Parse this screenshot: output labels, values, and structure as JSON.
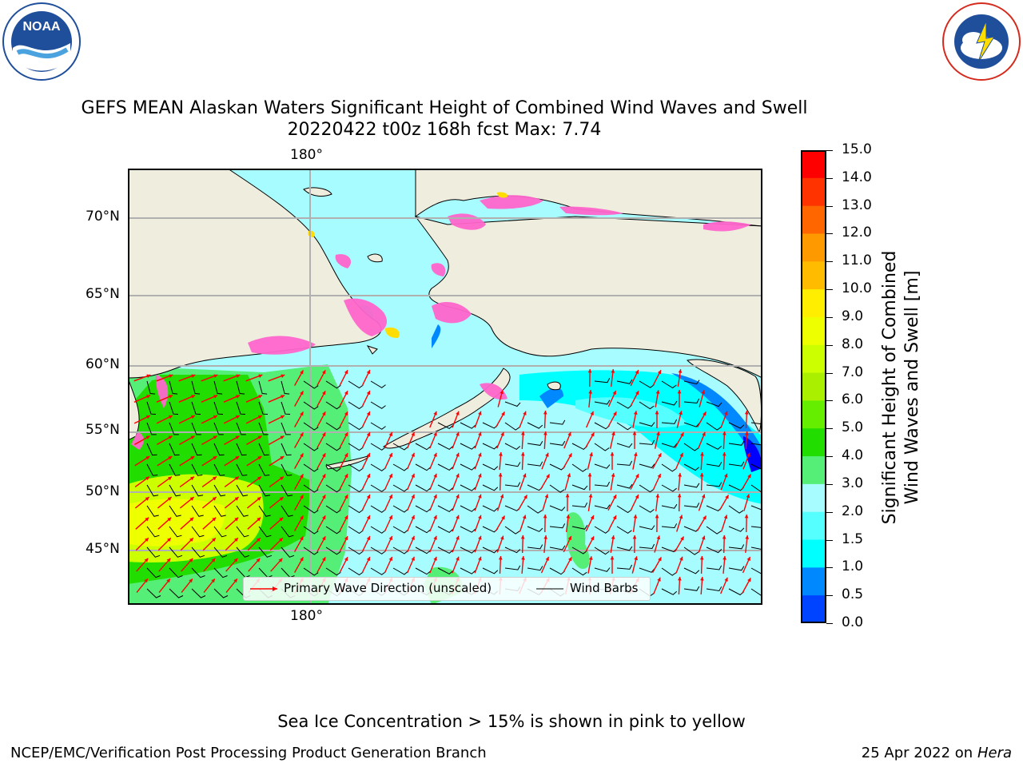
{
  "header": {
    "title_line1": "GEFS MEAN Alaskan Waters Significant Height of Combined Wind Waves and Swell",
    "title_line2": "20220422 t00z 168h fcst   Max: 7.74"
  },
  "logos": {
    "left": {
      "text": "NOAA",
      "ring_text": "NATIONAL OCEANIC AND ATMOSPHERIC ADMINISTRATION · U.S. DEPARTMENT OF COMMERCE",
      "color": "#1f4e9b"
    },
    "right": {
      "ring_text": "NATIONAL WEATHER SERVICE",
      "color": "#d52b1e"
    }
  },
  "map": {
    "lon_label_top": "180°",
    "lon_label_bottom": "180°",
    "lat_labels": [
      "70°N",
      "65°N",
      "60°N",
      "55°N",
      "50°N",
      "45°N"
    ],
    "legend": {
      "wave_dir": "Primary Wave Direction (unscaled)",
      "wind_barbs": "Wind Barbs"
    },
    "colors": {
      "land": "#efedde",
      "ocean_low": "#a6fcff",
      "arrow": "#ff0000",
      "barb": "#000000",
      "ice": "#ff66cc"
    }
  },
  "colorbar": {
    "label_line1": "Significant Height of Combined",
    "label_line2": "Wind Waves and Swell [m]",
    "ticks": [
      "15.0",
      "14.0",
      "13.0",
      "12.0",
      "11.0",
      "10.0",
      "9.0",
      "8.0",
      "7.0",
      "6.0",
      "5.0",
      "4.0",
      "3.0",
      "2.0",
      "1.5",
      "1.0",
      "0.5",
      "0.0"
    ],
    "bands": [
      "#ff0000",
      "#ff3300",
      "#ff6600",
      "#ff9900",
      "#ffbb00",
      "#ffee00",
      "#eeff00",
      "#ccff00",
      "#aaee00",
      "#66ee00",
      "#22dd00",
      "#55ee77",
      "#a6fcff",
      "#55ffff",
      "#00ffff",
      "#0088ff",
      "#0044ff",
      "#0000ff"
    ]
  },
  "footer": {
    "note": "Sea Ice Concentration > 15% is shown in pink to yellow",
    "left": "NCEP/EMC/Verification Post Processing Product Generation Branch",
    "date": "25 Apr 2022 on",
    "machine": "Hera"
  }
}
